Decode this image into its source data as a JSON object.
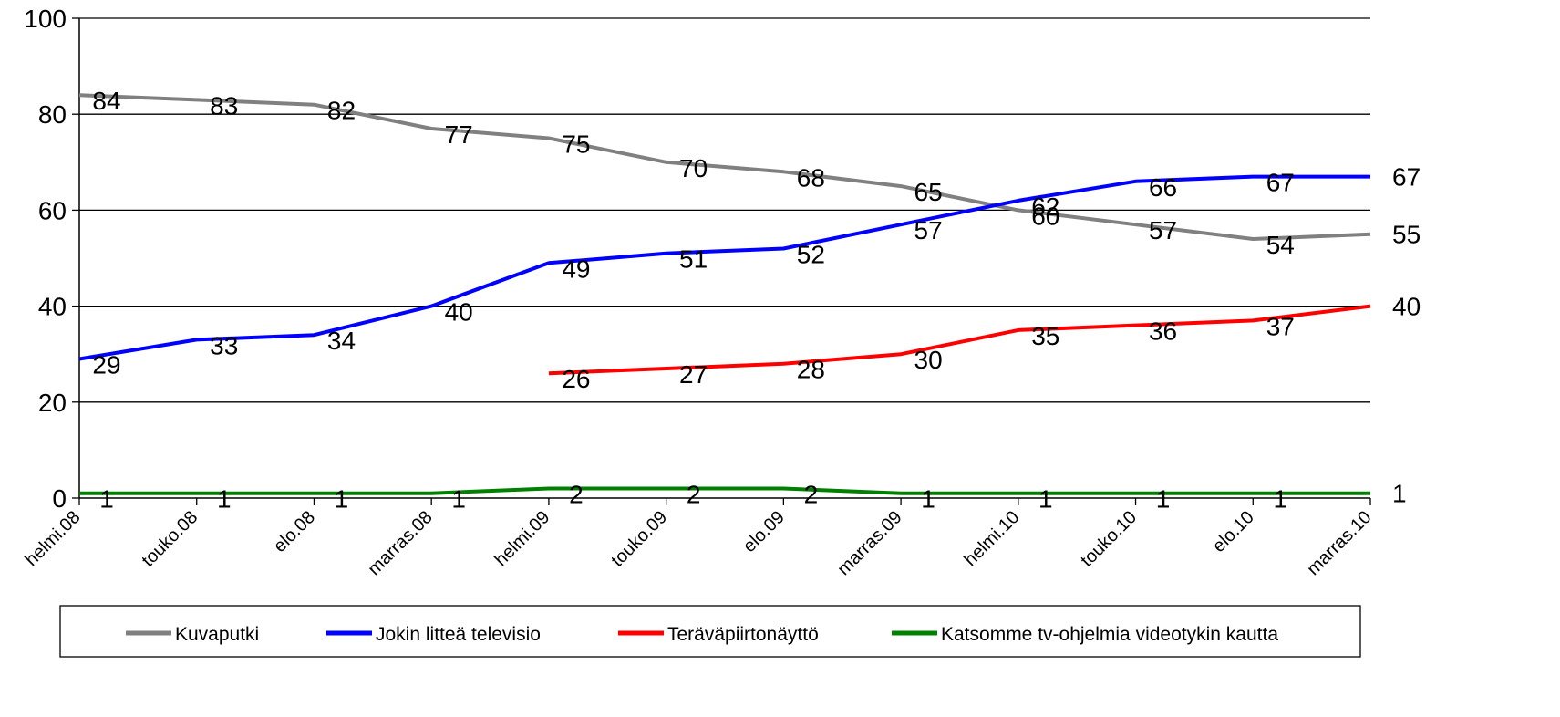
{
  "chart_data": {
    "type": "line",
    "categories": [
      "helmi.08",
      "touko.08",
      "elo.08",
      "marras.08",
      "helmi.09",
      "touko.09",
      "elo.09",
      "marras.09",
      "helmi.10",
      "touko.10",
      "elo.10",
      "marras.10"
    ],
    "ylim": [
      0,
      100
    ],
    "yticks": [
      0,
      20,
      40,
      60,
      80,
      100
    ],
    "ytick_labels": [
      "0",
      "20",
      "40",
      "60",
      "80",
      "100"
    ],
    "grid": true,
    "legend_position": "bottom",
    "series": [
      {
        "name": "Kuvaputki",
        "color": "#808080",
        "values": [
          84,
          83,
          82,
          77,
          75,
          70,
          68,
          65,
          60,
          57,
          54,
          55
        ],
        "labels": [
          "84",
          "83",
          "82",
          "77",
          "75",
          "70",
          "68",
          "65",
          "60",
          "57",
          "54",
          "55"
        ]
      },
      {
        "name": "Jokin litteä televisio",
        "color": "#0000ff",
        "values": [
          29,
          33,
          34,
          40,
          49,
          51,
          52,
          57,
          62,
          66,
          67,
          67
        ],
        "labels": [
          "29",
          "33",
          "34",
          "40",
          "49",
          "51",
          "52",
          "57",
          "62",
          "66",
          "67",
          "67"
        ]
      },
      {
        "name": "Teräväpiirtonäyttö",
        "color": "#ff0000",
        "values": [
          null,
          null,
          null,
          null,
          26,
          27,
          28,
          30,
          35,
          36,
          37,
          40
        ],
        "labels": [
          "",
          "",
          "",
          "",
          "26",
          "27",
          "28",
          "30",
          "35",
          "36",
          "37",
          "40"
        ]
      },
      {
        "name": "Katsomme tv-ohjelmia videotykin kautta",
        "color": "#008000",
        "values": [
          1,
          1,
          1,
          1,
          2,
          2,
          2,
          1,
          1,
          1,
          1,
          1
        ],
        "labels": [
          "1",
          "1",
          "1",
          "1",
          "2",
          "2",
          "2",
          "1",
          "1",
          "1",
          "1",
          "1"
        ]
      }
    ]
  }
}
